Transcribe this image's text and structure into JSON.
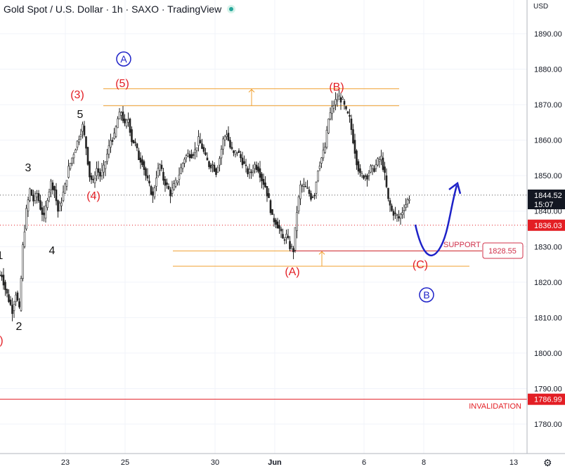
{
  "header": {
    "title": "Gold Spot / U.S. Dollar · 1h · SAXO · TradingView",
    "currency": "USD",
    "live_indicator_color": "#26a69a"
  },
  "colors": {
    "candle": "#222222",
    "orange": "#f0a030",
    "red": "#e31e24",
    "blue": "#1e22c8",
    "support_red": "#d0304a",
    "grid": "#f0f3fa",
    "axis_text": "#131722"
  },
  "price_axis": {
    "labels": [
      "1890.00",
      "1880.00",
      "1870.00",
      "1860.00",
      "1850.00",
      "1840.00",
      "1830.00",
      "1820.00",
      "1810.00",
      "1800.00",
      "1790.00",
      "1780.00"
    ],
    "current_price": "1844.52",
    "countdown": "15:07",
    "level_1836": "1836.03",
    "level_1828": "1828.55",
    "level_1787": "1786.99"
  },
  "time_axis": {
    "labels": [
      "23",
      "25",
      "30",
      "Jun",
      "6",
      "8",
      "13"
    ]
  },
  "chart_data": {
    "type": "candlestick",
    "y_range": [
      1775,
      1895
    ],
    "series_price_close_path": [
      [
        0,
        1822
      ],
      [
        5,
        1818
      ],
      [
        10,
        1815
      ],
      [
        15,
        1812
      ],
      [
        20,
        1817
      ],
      [
        25,
        1812
      ],
      [
        30,
        1830
      ],
      [
        35,
        1840
      ],
      [
        40,
        1846
      ],
      [
        45,
        1843
      ],
      [
        50,
        1845
      ],
      [
        55,
        1841
      ],
      [
        60,
        1838
      ],
      [
        65,
        1844
      ],
      [
        70,
        1848
      ],
      [
        75,
        1846
      ],
      [
        80,
        1840
      ],
      [
        85,
        1843
      ],
      [
        90,
        1847
      ],
      [
        95,
        1852
      ],
      [
        100,
        1855
      ],
      [
        105,
        1858
      ],
      [
        110,
        1861
      ],
      [
        115,
        1864
      ],
      [
        120,
        1858
      ],
      [
        125,
        1850
      ],
      [
        130,
        1848
      ],
      [
        135,
        1852
      ],
      [
        140,
        1850
      ],
      [
        145,
        1852
      ],
      [
        150,
        1856
      ],
      [
        155,
        1860
      ],
      [
        160,
        1861
      ],
      [
        165,
        1866
      ],
      [
        170,
        1868
      ],
      [
        175,
        1864
      ],
      [
        180,
        1866
      ],
      [
        185,
        1860
      ],
      [
        190,
        1859
      ],
      [
        195,
        1855
      ],
      [
        200,
        1854
      ],
      [
        205,
        1850
      ],
      [
        210,
        1847
      ],
      [
        215,
        1844
      ],
      [
        220,
        1850
      ],
      [
        225,
        1853
      ],
      [
        230,
        1849
      ],
      [
        235,
        1847
      ],
      [
        240,
        1845
      ],
      [
        245,
        1847
      ],
      [
        250,
        1849
      ],
      [
        255,
        1852
      ],
      [
        260,
        1855
      ],
      [
        265,
        1856
      ],
      [
        270,
        1856
      ],
      [
        275,
        1857
      ],
      [
        280,
        1860
      ],
      [
        285,
        1858
      ],
      [
        290,
        1855
      ],
      [
        295,
        1853
      ],
      [
        300,
        1853
      ],
      [
        305,
        1851
      ],
      [
        310,
        1855
      ],
      [
        315,
        1860
      ],
      [
        320,
        1862
      ],
      [
        325,
        1858
      ],
      [
        330,
        1856
      ],
      [
        335,
        1857
      ],
      [
        340,
        1855
      ],
      [
        345,
        1853
      ],
      [
        350,
        1851
      ],
      [
        355,
        1851
      ],
      [
        360,
        1853
      ],
      [
        365,
        1852
      ],
      [
        370,
        1849
      ],
      [
        375,
        1847
      ],
      [
        380,
        1843
      ],
      [
        385,
        1838
      ],
      [
        390,
        1837
      ],
      [
        395,
        1835
      ],
      [
        400,
        1832
      ],
      [
        405,
        1833
      ],
      [
        410,
        1830
      ],
      [
        415,
        1829
      ],
      [
        420,
        1840
      ],
      [
        425,
        1847
      ],
      [
        430,
        1847
      ],
      [
        435,
        1846
      ],
      [
        440,
        1844
      ],
      [
        445,
        1845
      ],
      [
        450,
        1852
      ],
      [
        455,
        1855
      ],
      [
        460,
        1858
      ],
      [
        465,
        1866
      ],
      [
        470,
        1869
      ],
      [
        475,
        1871
      ],
      [
        480,
        1872
      ],
      [
        485,
        1871
      ],
      [
        490,
        1868
      ],
      [
        495,
        1866
      ],
      [
        500,
        1860
      ],
      [
        505,
        1854
      ],
      [
        510,
        1850
      ],
      [
        515,
        1850
      ],
      [
        520,
        1850
      ],
      [
        525,
        1852
      ],
      [
        530,
        1852
      ],
      [
        535,
        1854
      ],
      [
        540,
        1855
      ],
      [
        545,
        1850
      ],
      [
        550,
        1843
      ],
      [
        555,
        1840
      ],
      [
        560,
        1839
      ],
      [
        565,
        1838
      ],
      [
        570,
        1840
      ],
      [
        575,
        1842
      ],
      [
        580,
        1844
      ]
    ],
    "levels": {
      "fib_top": 1874.5,
      "fib_mid": 1869.7,
      "support_a": 1828.8,
      "support_b": 1824.5,
      "current_dotted": 1844.52,
      "red_dotted": 1836.03,
      "invalidation": 1786.99
    },
    "wave_labels_red": [
      "(3)",
      "(5)",
      "(4)",
      "(B)",
      "(A)",
      "(C)",
      ")"
    ],
    "wave_labels_black": [
      "5",
      "3",
      "4",
      "1",
      "2"
    ],
    "circle_labels": [
      "A",
      "B"
    ],
    "annotations": {
      "support_text": "SUPPORT",
      "invalidation_text": "INVALIDATION"
    }
  }
}
